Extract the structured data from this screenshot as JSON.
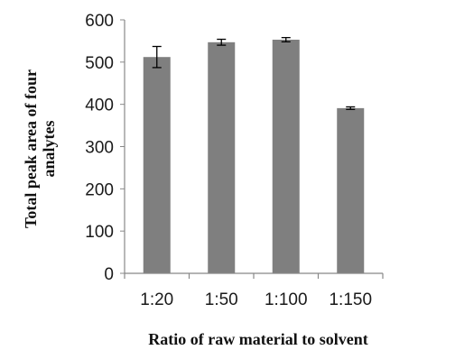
{
  "chart_data": {
    "type": "bar",
    "xlabel": "Ratio of raw material to solvent",
    "ylabel_lines": [
      "Total peak area of four",
      "analytes"
    ],
    "categories": [
      "1:20",
      "1:50",
      "1:100",
      "1:150"
    ],
    "values": [
      512,
      547,
      553,
      391
    ],
    "errors": [
      25,
      7,
      5,
      3
    ],
    "ylim": [
      0,
      600
    ],
    "yticks": [
      "0",
      "100",
      "200",
      "300",
      "400",
      "500",
      "600"
    ],
    "grid": false,
    "bar_color": "#7f7f7f",
    "axis_color": "#888888"
  }
}
